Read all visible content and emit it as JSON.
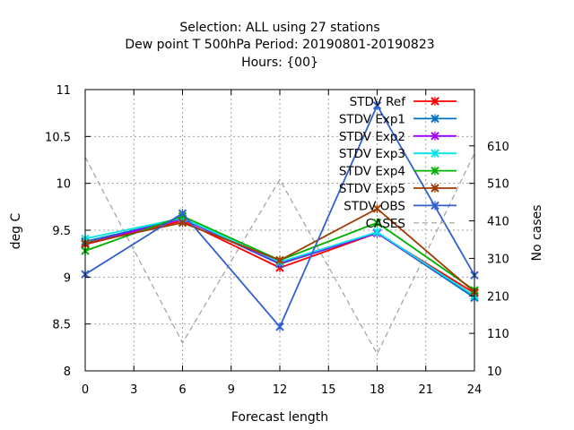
{
  "chart_data": {
    "type": "line",
    "title_lines": [
      "Selection: ALL using    27 stations",
      "Dew point T 500hPa   Period: 20190801-20190823",
      "Hours: {00}"
    ],
    "xlabel": "Forecast length",
    "ylabel": "deg C",
    "y2label": "No cases",
    "x": [
      0,
      6,
      12,
      18,
      24
    ],
    "xlim": [
      0,
      24
    ],
    "xticks": [
      0,
      3,
      6,
      9,
      12,
      15,
      18,
      21,
      24
    ],
    "ylim": [
      8,
      11
    ],
    "yticks": [
      "8",
      "8.5",
      "9",
      "9.5",
      "10",
      "10.5",
      "11"
    ],
    "y2lim": [
      10,
      760
    ],
    "y2ticks": [
      10,
      110,
      210,
      310,
      410,
      510,
      610
    ],
    "grid": true,
    "legend_position": "top-right",
    "series": [
      {
        "name": "STDV Ref",
        "color": "#ff0000",
        "values": [
          9.35,
          9.6,
          9.1,
          9.47,
          8.83
        ]
      },
      {
        "name": "STDV Exp1",
        "color": "#0070c0",
        "values": [
          9.38,
          9.62,
          9.14,
          9.47,
          8.78
        ]
      },
      {
        "name": "STDV Exp2",
        "color": "#a000ff",
        "values": [
          9.36,
          9.62,
          9.15,
          9.47,
          8.8
        ]
      },
      {
        "name": "STDV Exp3",
        "color": "#00e6e6",
        "values": [
          9.41,
          9.63,
          9.16,
          9.48,
          8.8
        ]
      },
      {
        "name": "STDV Exp4",
        "color": "#00b000",
        "values": [
          9.28,
          9.65,
          9.18,
          9.58,
          8.86
        ]
      },
      {
        "name": "STDV Exp5",
        "color": "#a03c00",
        "values": [
          9.36,
          9.58,
          9.18,
          9.73,
          8.84
        ]
      },
      {
        "name": "STDV OBS",
        "color": "#3060d0",
        "values": [
          9.03,
          9.68,
          8.47,
          10.83,
          9.02
        ]
      },
      {
        "name": "CASES",
        "color": "#a0a0a0",
        "dashed": true,
        "axis": "y2",
        "values": [
          580,
          85,
          520,
          55,
          590
        ]
      }
    ]
  }
}
